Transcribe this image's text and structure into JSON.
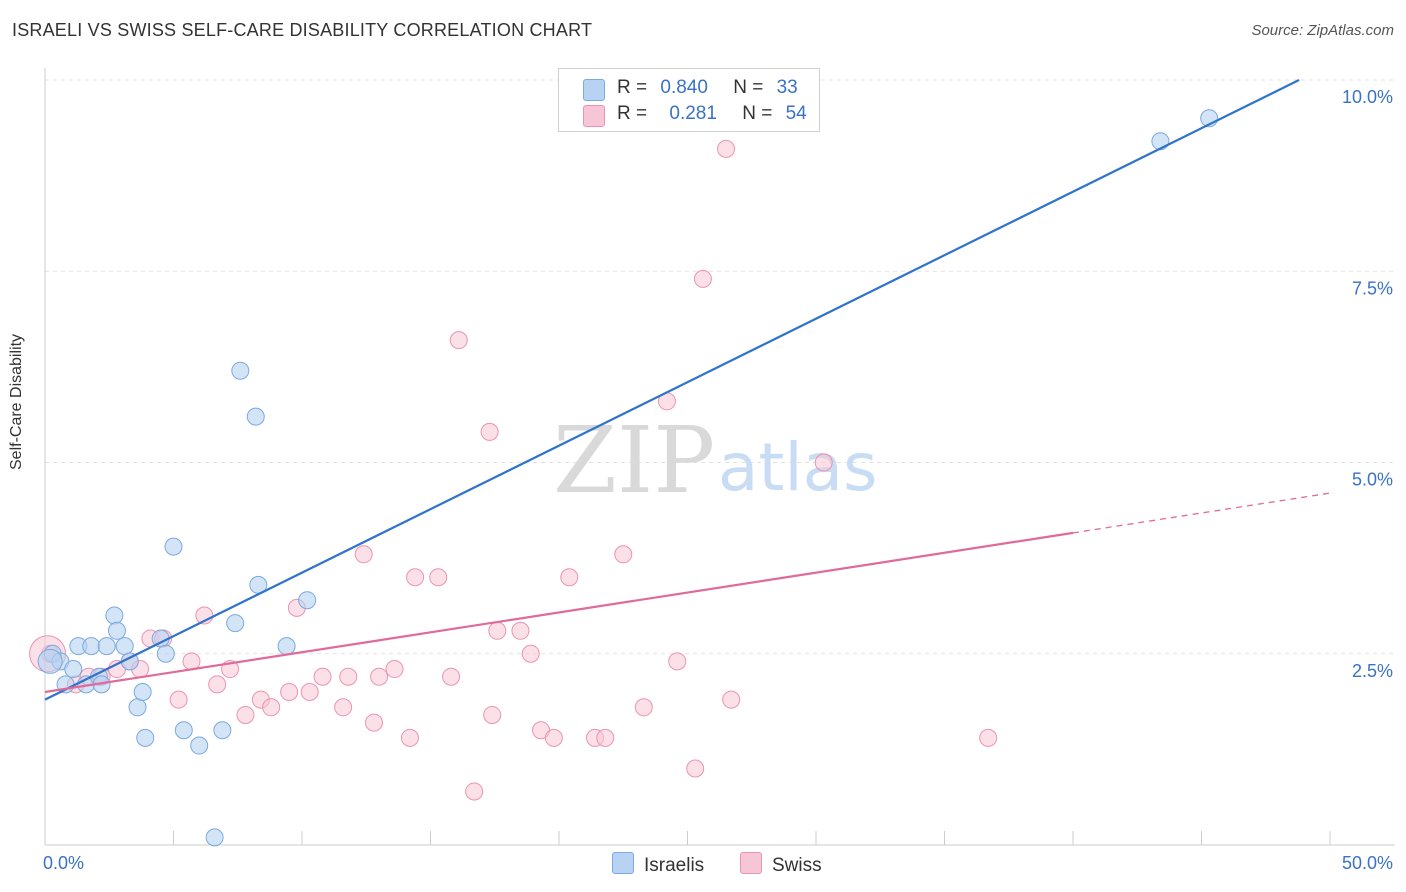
{
  "title": "ISRAELI VS SWISS SELF-CARE DISABILITY CORRELATION CHART",
  "source": "Source: ZipAtlas.com",
  "watermark": {
    "zip": "ZIP",
    "atlas": "atlas"
  },
  "legend": {
    "rows": [
      {
        "r_label": "R =",
        "r_value": "0.840",
        "n_label": "N =",
        "n_value": "33"
      },
      {
        "r_label": "R =",
        "r_value": "0.281",
        "n_label": "N =",
        "n_value": "54"
      }
    ]
  },
  "bottom_legend": {
    "israelis": "Israelis",
    "swiss": "Swiss"
  },
  "colors": {
    "blue_fill": "#b7d2f2",
    "blue_stroke": "#7aaae0",
    "blue_line": "#2f74cc",
    "pink_fill": "#f7c6d6",
    "pink_stroke": "#ec93b2",
    "pink_line": "#e06a98",
    "axis_text": "#3a72c4"
  },
  "chart_data": {
    "type": "scatter",
    "title": "ISRAELI VS SWISS SELF-CARE DISABILITY CORRELATION CHART",
    "xlabel": "",
    "ylabel": "Self-Care Disability",
    "xlim": [
      0,
      50
    ],
    "ylim": [
      0,
      10
    ],
    "x_tick_labels": [
      "0.0%",
      "50.0%"
    ],
    "y_tick_labels": [
      "2.5%",
      "5.0%",
      "7.5%",
      "10.0%"
    ],
    "y_ticks": [
      2.5,
      5.0,
      7.5,
      10.0
    ],
    "series": [
      {
        "name": "Israelis",
        "r": 0.84,
        "n": 33,
        "trend": {
          "x": [
            0,
            50
          ],
          "y": [
            1.9,
            10.2
          ],
          "dashed_from": null
        },
        "points": [
          [
            0.3,
            2.5
          ],
          [
            0.6,
            2.4
          ],
          [
            0.8,
            2.1
          ],
          [
            1.1,
            2.3
          ],
          [
            1.3,
            2.6
          ],
          [
            1.6,
            2.1
          ],
          [
            1.8,
            2.6
          ],
          [
            2.1,
            2.2
          ],
          [
            2.2,
            2.1
          ],
          [
            2.4,
            2.6
          ],
          [
            2.7,
            3.0
          ],
          [
            2.8,
            2.8
          ],
          [
            3.1,
            2.6
          ],
          [
            3.3,
            2.4
          ],
          [
            3.6,
            1.8
          ],
          [
            3.8,
            2.0
          ],
          [
            3.9,
            1.4
          ],
          [
            4.5,
            2.7
          ],
          [
            4.7,
            2.5
          ],
          [
            5.0,
            3.9
          ],
          [
            5.4,
            1.5
          ],
          [
            6.0,
            1.3
          ],
          [
            6.6,
            0.1
          ],
          [
            6.9,
            1.5
          ],
          [
            7.4,
            2.9
          ],
          [
            7.6,
            6.2
          ],
          [
            8.2,
            5.6
          ],
          [
            8.3,
            3.4
          ],
          [
            9.4,
            2.6
          ],
          [
            10.2,
            3.2
          ],
          [
            43.4,
            9.2
          ],
          [
            45.3,
            9.5
          ],
          [
            0.2,
            2.4
          ]
        ]
      },
      {
        "name": "Swiss",
        "r": 0.281,
        "n": 54,
        "trend": {
          "x": [
            0,
            50
          ],
          "y": [
            2.0,
            4.6
          ],
          "dashed_from": 40
        },
        "points": [
          [
            0.2,
            2.5
          ],
          [
            1.2,
            2.1
          ],
          [
            1.7,
            2.2
          ],
          [
            2.2,
            2.2
          ],
          [
            2.8,
            2.3
          ],
          [
            3.3,
            2.4
          ],
          [
            3.7,
            2.3
          ],
          [
            4.1,
            2.7
          ],
          [
            4.6,
            2.7
          ],
          [
            5.2,
            1.9
          ],
          [
            5.7,
            2.4
          ],
          [
            6.2,
            3.0
          ],
          [
            6.7,
            2.1
          ],
          [
            7.2,
            2.3
          ],
          [
            7.8,
            1.7
          ],
          [
            8.4,
            1.9
          ],
          [
            8.8,
            1.8
          ],
          [
            9.5,
            2.0
          ],
          [
            9.8,
            3.1
          ],
          [
            10.3,
            2.0
          ],
          [
            10.8,
            2.2
          ],
          [
            11.6,
            1.8
          ],
          [
            11.8,
            2.2
          ],
          [
            12.4,
            3.8
          ],
          [
            12.8,
            1.6
          ],
          [
            13.0,
            2.2
          ],
          [
            13.6,
            2.3
          ],
          [
            14.2,
            1.4
          ],
          [
            14.4,
            3.5
          ],
          [
            15.3,
            3.5
          ],
          [
            15.8,
            2.2
          ],
          [
            16.1,
            6.6
          ],
          [
            16.7,
            0.7
          ],
          [
            17.3,
            5.4
          ],
          [
            17.4,
            1.7
          ],
          [
            17.6,
            2.8
          ],
          [
            18.5,
            2.8
          ],
          [
            18.9,
            2.5
          ],
          [
            19.3,
            1.5
          ],
          [
            19.8,
            1.4
          ],
          [
            20.4,
            3.5
          ],
          [
            21.4,
            1.4
          ],
          [
            21.8,
            1.4
          ],
          [
            22.5,
            3.8
          ],
          [
            23.3,
            1.8
          ],
          [
            24.2,
            5.8
          ],
          [
            24.6,
            2.4
          ],
          [
            25.3,
            1.0
          ],
          [
            25.6,
            7.4
          ],
          [
            26.5,
            9.1
          ],
          [
            26.7,
            1.9
          ],
          [
            30.3,
            5.0
          ],
          [
            36.7,
            1.4
          ],
          [
            0.1,
            2.5
          ]
        ]
      }
    ]
  }
}
